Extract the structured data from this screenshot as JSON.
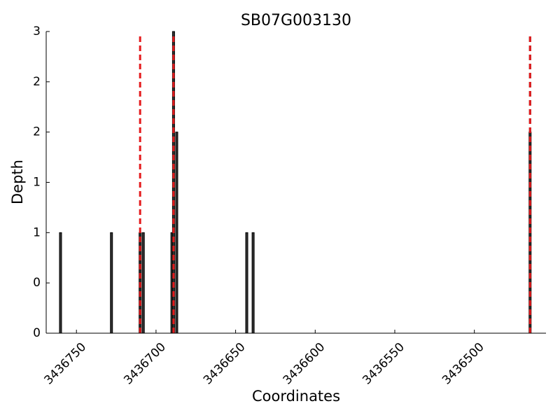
{
  "chart_data": {
    "type": "bar",
    "title": "SB07G003130",
    "x_label": "Coordinates",
    "y_label": "Depth",
    "x": [
      3436760,
      3436728,
      3436710,
      3436708,
      3436690,
      3436689,
      3436687,
      3436643,
      3436639,
      3436465
    ],
    "values": [
      1,
      1,
      1,
      1,
      1,
      3,
      2,
      1,
      1,
      2
    ],
    "color": "#333333",
    "xlim": [
      3436769,
      3436455
    ],
    "xticks": [
      3436750,
      3436700,
      3436650,
      3436600,
      3436550,
      3436500
    ],
    "ylim": [
      0,
      3
    ],
    "yticks": [
      0,
      {
        "value": 0.5,
        "label": "0"
      },
      1,
      {
        "value": 1.5,
        "label": "1"
      },
      2,
      {
        "value": 2.5,
        "label": "2"
      },
      3
    ],
    "vlines": [
      {
        "x": 3436710,
        "color": "#e41a1c"
      },
      {
        "x": 3436689,
        "color": "#000000"
      },
      {
        "x": 3436689,
        "color": "#e41a1c"
      },
      {
        "x": 3436465,
        "color": "#000000"
      },
      {
        "x": 3436465,
        "color": "#e41a1c"
      }
    ]
  }
}
